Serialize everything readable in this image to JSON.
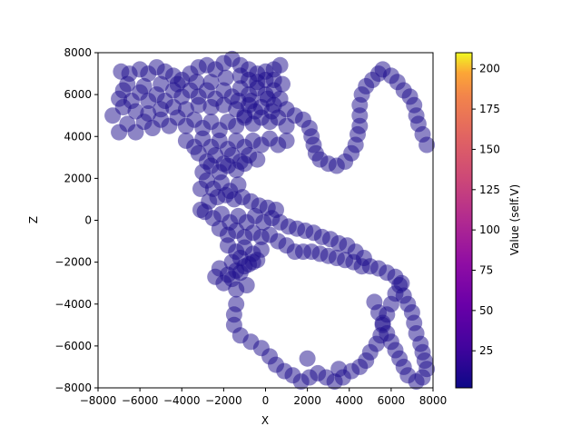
{
  "chart_data": {
    "type": "scatter",
    "title": "",
    "xlabel": "X",
    "ylabel": "Z",
    "xlim": [
      -8000,
      8000
    ],
    "ylim": [
      -8000,
      8000
    ],
    "xticks": [
      "−8000",
      "−6000",
      "−4000",
      "−2000",
      "0",
      "2000",
      "4000",
      "6000",
      "8000"
    ],
    "yticks": [
      "−8000",
      "−6000",
      "−4000",
      "−2000",
      "0",
      "2000",
      "4000",
      "6000",
      "8000"
    ],
    "grid": false,
    "marker_color": "#1c0c8c",
    "marker_alpha": 0.5,
    "colorbar": {
      "label": "Value (self.V)",
      "range": [
        2,
        210
      ],
      "ticks": [
        "25",
        "50",
        "75",
        "100",
        "125",
        "150",
        "175",
        "200"
      ],
      "colormap": "plasma"
    },
    "points": [
      [
        -6600,
        6500
      ],
      [
        -6900,
        7100
      ],
      [
        -6500,
        7000
      ],
      [
        -6000,
        7200
      ],
      [
        -5600,
        7000
      ],
      [
        -5200,
        7300
      ],
      [
        -4800,
        7100
      ],
      [
        -4400,
        6900
      ],
      [
        -4000,
        6700
      ],
      [
        -3600,
        7000
      ],
      [
        -3200,
        7300
      ],
      [
        -2800,
        7400
      ],
      [
        -2400,
        7200
      ],
      [
        -2000,
        7500
      ],
      [
        -1600,
        7700
      ],
      [
        -1200,
        7400
      ],
      [
        -800,
        7200
      ],
      [
        -400,
        7000
      ],
      [
        0,
        7100
      ],
      [
        400,
        7200
      ],
      [
        700,
        7400
      ],
      [
        -7300,
        5000
      ],
      [
        -7000,
        5800
      ],
      [
        -6800,
        6200
      ],
      [
        -6400,
        5700
      ],
      [
        -6000,
        6100
      ],
      [
        -5600,
        5700
      ],
      [
        -5200,
        6000
      ],
      [
        -4800,
        5700
      ],
      [
        -4400,
        6200
      ],
      [
        -4000,
        5900
      ],
      [
        -3600,
        6200
      ],
      [
        -3200,
        5900
      ],
      [
        -2800,
        6200
      ],
      [
        -2400,
        5800
      ],
      [
        -2000,
        6200
      ],
      [
        -1600,
        5900
      ],
      [
        -1200,
        6300
      ],
      [
        -800,
        6000
      ],
      [
        -400,
        6300
      ],
      [
        0,
        6000
      ],
      [
        400,
        6200
      ],
      [
        -7000,
        4200
      ],
      [
        -6600,
        4600
      ],
      [
        -6200,
        4200
      ],
      [
        -5800,
        4700
      ],
      [
        -5400,
        4400
      ],
      [
        -5000,
        4800
      ],
      [
        -4600,
        4500
      ],
      [
        -4200,
        4900
      ],
      [
        -3800,
        4500
      ],
      [
        -3400,
        4800
      ],
      [
        -3000,
        4400
      ],
      [
        -2600,
        4700
      ],
      [
        -2200,
        4300
      ],
      [
        -1800,
        4700
      ],
      [
        -1400,
        4500
      ],
      [
        -1000,
        4900
      ],
      [
        -600,
        4600
      ],
      [
        -200,
        4900
      ],
      [
        200,
        4700
      ],
      [
        600,
        4900
      ],
      [
        1000,
        4500
      ],
      [
        1400,
        5000
      ],
      [
        1800,
        4800
      ],
      [
        2100,
        4400
      ],
      [
        -6800,
        5400
      ],
      [
        -6200,
        5200
      ],
      [
        -5600,
        5100
      ],
      [
        -5000,
        5300
      ],
      [
        -4400,
        5400
      ],
      [
        -3800,
        5300
      ],
      [
        -3200,
        5500
      ],
      [
        -2600,
        5400
      ],
      [
        -2000,
        5500
      ],
      [
        -1400,
        5300
      ],
      [
        -800,
        5500
      ],
      [
        -200,
        5400
      ],
      [
        400,
        5500
      ],
      [
        1000,
        5300
      ],
      [
        -3800,
        3800
      ],
      [
        -3400,
        3500
      ],
      [
        -3000,
        3900
      ],
      [
        -2600,
        3500
      ],
      [
        -2200,
        3800
      ],
      [
        -1800,
        3400
      ],
      [
        -1400,
        3800
      ],
      [
        -1000,
        3500
      ],
      [
        -600,
        3800
      ],
      [
        -200,
        3600
      ],
      [
        200,
        3900
      ],
      [
        600,
        3600
      ],
      [
        1000,
        3800
      ],
      [
        -3200,
        3200
      ],
      [
        -2800,
        2800
      ],
      [
        -2400,
        3100
      ],
      [
        -2000,
        2700
      ],
      [
        -1600,
        3100
      ],
      [
        -1200,
        2800
      ],
      [
        -800,
        3100
      ],
      [
        -400,
        2900
      ],
      [
        -3000,
        2300
      ],
      [
        -2600,
        2600
      ],
      [
        -2200,
        2300
      ],
      [
        -1800,
        2600
      ],
      [
        -1400,
        2400
      ],
      [
        -1000,
        2700
      ],
      [
        -3100,
        1500
      ],
      [
        -2800,
        1900
      ],
      [
        -2500,
        1500
      ],
      [
        -2100,
        1800
      ],
      [
        -1700,
        1400
      ],
      [
        -1300,
        1700
      ],
      [
        -3100,
        500
      ],
      [
        -2700,
        900
      ],
      [
        -2300,
        1100
      ],
      [
        -1900,
        1200
      ],
      [
        -1500,
        1000
      ],
      [
        -1100,
        1100
      ],
      [
        -700,
        900
      ],
      [
        -300,
        700
      ],
      [
        100,
        600
      ],
      [
        500,
        500
      ],
      [
        -2900,
        400
      ],
      [
        -2500,
        100
      ],
      [
        -2100,
        300
      ],
      [
        -1700,
        -100
      ],
      [
        -1300,
        200
      ],
      [
        -900,
        -100
      ],
      [
        -500,
        200
      ],
      [
        -100,
        -100
      ],
      [
        300,
        100
      ],
      [
        700,
        -100
      ],
      [
        1100,
        -300
      ],
      [
        1500,
        -400
      ],
      [
        1900,
        -500
      ],
      [
        2300,
        -600
      ],
      [
        2700,
        -800
      ],
      [
        3100,
        -900
      ],
      [
        3500,
        -1100
      ],
      [
        3900,
        -1200
      ],
      [
        4300,
        -1500
      ],
      [
        4700,
        -1800
      ],
      [
        -2200,
        -400
      ],
      [
        -1800,
        -700
      ],
      [
        -1400,
        -500
      ],
      [
        -1000,
        -800
      ],
      [
        -600,
        -600
      ],
      [
        -200,
        -800
      ],
      [
        200,
        -700
      ],
      [
        600,
        -1000
      ],
      [
        1000,
        -1200
      ],
      [
        1400,
        -1500
      ],
      [
        1800,
        -1500
      ],
      [
        2200,
        -1500
      ],
      [
        2600,
        -1600
      ],
      [
        3000,
        -1700
      ],
      [
        3400,
        -1800
      ],
      [
        3800,
        -1900
      ],
      [
        4200,
        -2000
      ],
      [
        4600,
        -2200
      ],
      [
        5000,
        -2200
      ],
      [
        5400,
        -2300
      ],
      [
        5800,
        -2500
      ],
      [
        6200,
        -2700
      ],
      [
        6500,
        -3000
      ],
      [
        -1800,
        -1200
      ],
      [
        -1400,
        -1500
      ],
      [
        -1000,
        -1300
      ],
      [
        -600,
        -1600
      ],
      [
        -200,
        -1400
      ],
      [
        -1600,
        -2000
      ],
      [
        -1200,
        -1800
      ],
      [
        -800,
        -2100
      ],
      [
        -400,
        -1900
      ],
      [
        -2200,
        -2300
      ],
      [
        -1800,
        -2600
      ],
      [
        -1400,
        -2400
      ],
      [
        -1000,
        -2200
      ],
      [
        -600,
        -2000
      ],
      [
        -2400,
        -2700
      ],
      [
        -2000,
        -3000
      ],
      [
        -1600,
        -2800
      ],
      [
        -1200,
        -2500
      ],
      [
        -1400,
        -3300
      ],
      [
        -900,
        -3100
      ],
      [
        -1400,
        -4000
      ],
      [
        -1500,
        -4500
      ],
      [
        -1500,
        -5000
      ],
      [
        -1200,
        -5500
      ],
      [
        -700,
        -5800
      ],
      [
        -200,
        -6100
      ],
      [
        200,
        -6500
      ],
      [
        500,
        -6900
      ],
      [
        900,
        -7200
      ],
      [
        1300,
        -7400
      ],
      [
        1700,
        -7700
      ],
      [
        2100,
        -7500
      ],
      [
        2500,
        -7300
      ],
      [
        2900,
        -7500
      ],
      [
        3300,
        -7700
      ],
      [
        3700,
        -7500
      ],
      [
        4100,
        -7200
      ],
      [
        4500,
        -7000
      ],
      [
        4800,
        -6700
      ],
      [
        5000,
        -6300
      ],
      [
        5300,
        -5900
      ],
      [
        5500,
        -5500
      ],
      [
        5600,
        -5000
      ],
      [
        5800,
        -4500
      ],
      [
        6000,
        -4000
      ],
      [
        6200,
        -3500
      ],
      [
        6400,
        -3100
      ],
      [
        6600,
        -3600
      ],
      [
        6800,
        -4000
      ],
      [
        7000,
        -4400
      ],
      [
        7100,
        -4900
      ],
      [
        7200,
        -5400
      ],
      [
        7400,
        -5900
      ],
      [
        7500,
        -6300
      ],
      [
        7600,
        -6700
      ],
      [
        7700,
        -7100
      ],
      [
        7500,
        -7500
      ],
      [
        7200,
        -7700
      ],
      [
        6800,
        -7400
      ],
      [
        6600,
        -7000
      ],
      [
        6400,
        -6600
      ],
      [
        6200,
        -6200
      ],
      [
        6000,
        -5800
      ],
      [
        5800,
        -5400
      ],
      [
        5600,
        -4900
      ],
      [
        5400,
        -4400
      ],
      [
        5200,
        -3900
      ],
      [
        2000,
        -6600
      ],
      [
        3500,
        -7100
      ],
      [
        2200,
        4000
      ],
      [
        2300,
        3600
      ],
      [
        2400,
        3200
      ],
      [
        2600,
        2900
      ],
      [
        3000,
        2700
      ],
      [
        3400,
        2600
      ],
      [
        3800,
        2800
      ],
      [
        4100,
        3200
      ],
      [
        4300,
        3600
      ],
      [
        4400,
        4100
      ],
      [
        4500,
        4500
      ],
      [
        4500,
        5000
      ],
      [
        4500,
        5500
      ],
      [
        4600,
        6000
      ],
      [
        4800,
        6400
      ],
      [
        5100,
        6700
      ],
      [
        5400,
        7000
      ],
      [
        5600,
        7200
      ],
      [
        6000,
        6900
      ],
      [
        6300,
        6600
      ],
      [
        6600,
        6200
      ],
      [
        6900,
        5900
      ],
      [
        7100,
        5500
      ],
      [
        7200,
        5000
      ],
      [
        7300,
        4600
      ],
      [
        7500,
        4100
      ],
      [
        7700,
        3600
      ],
      [
        -800,
        6700
      ],
      [
        -400,
        6600
      ],
      [
        0,
        6700
      ],
      [
        400,
        6700
      ],
      [
        800,
        6500
      ],
      [
        -1200,
        6900
      ],
      [
        -1900,
        6800
      ],
      [
        -2600,
        6600
      ],
      [
        -3300,
        6600
      ],
      [
        -4200,
        6500
      ],
      [
        -5000,
        6500
      ],
      [
        -5800,
        6400
      ],
      [
        -1000,
        5000
      ],
      [
        -500,
        5200
      ],
      [
        300,
        5200
      ],
      [
        -1300,
        5700
      ],
      [
        -700,
        5700
      ],
      [
        100,
        5800
      ],
      [
        700,
        5800
      ]
    ]
  }
}
